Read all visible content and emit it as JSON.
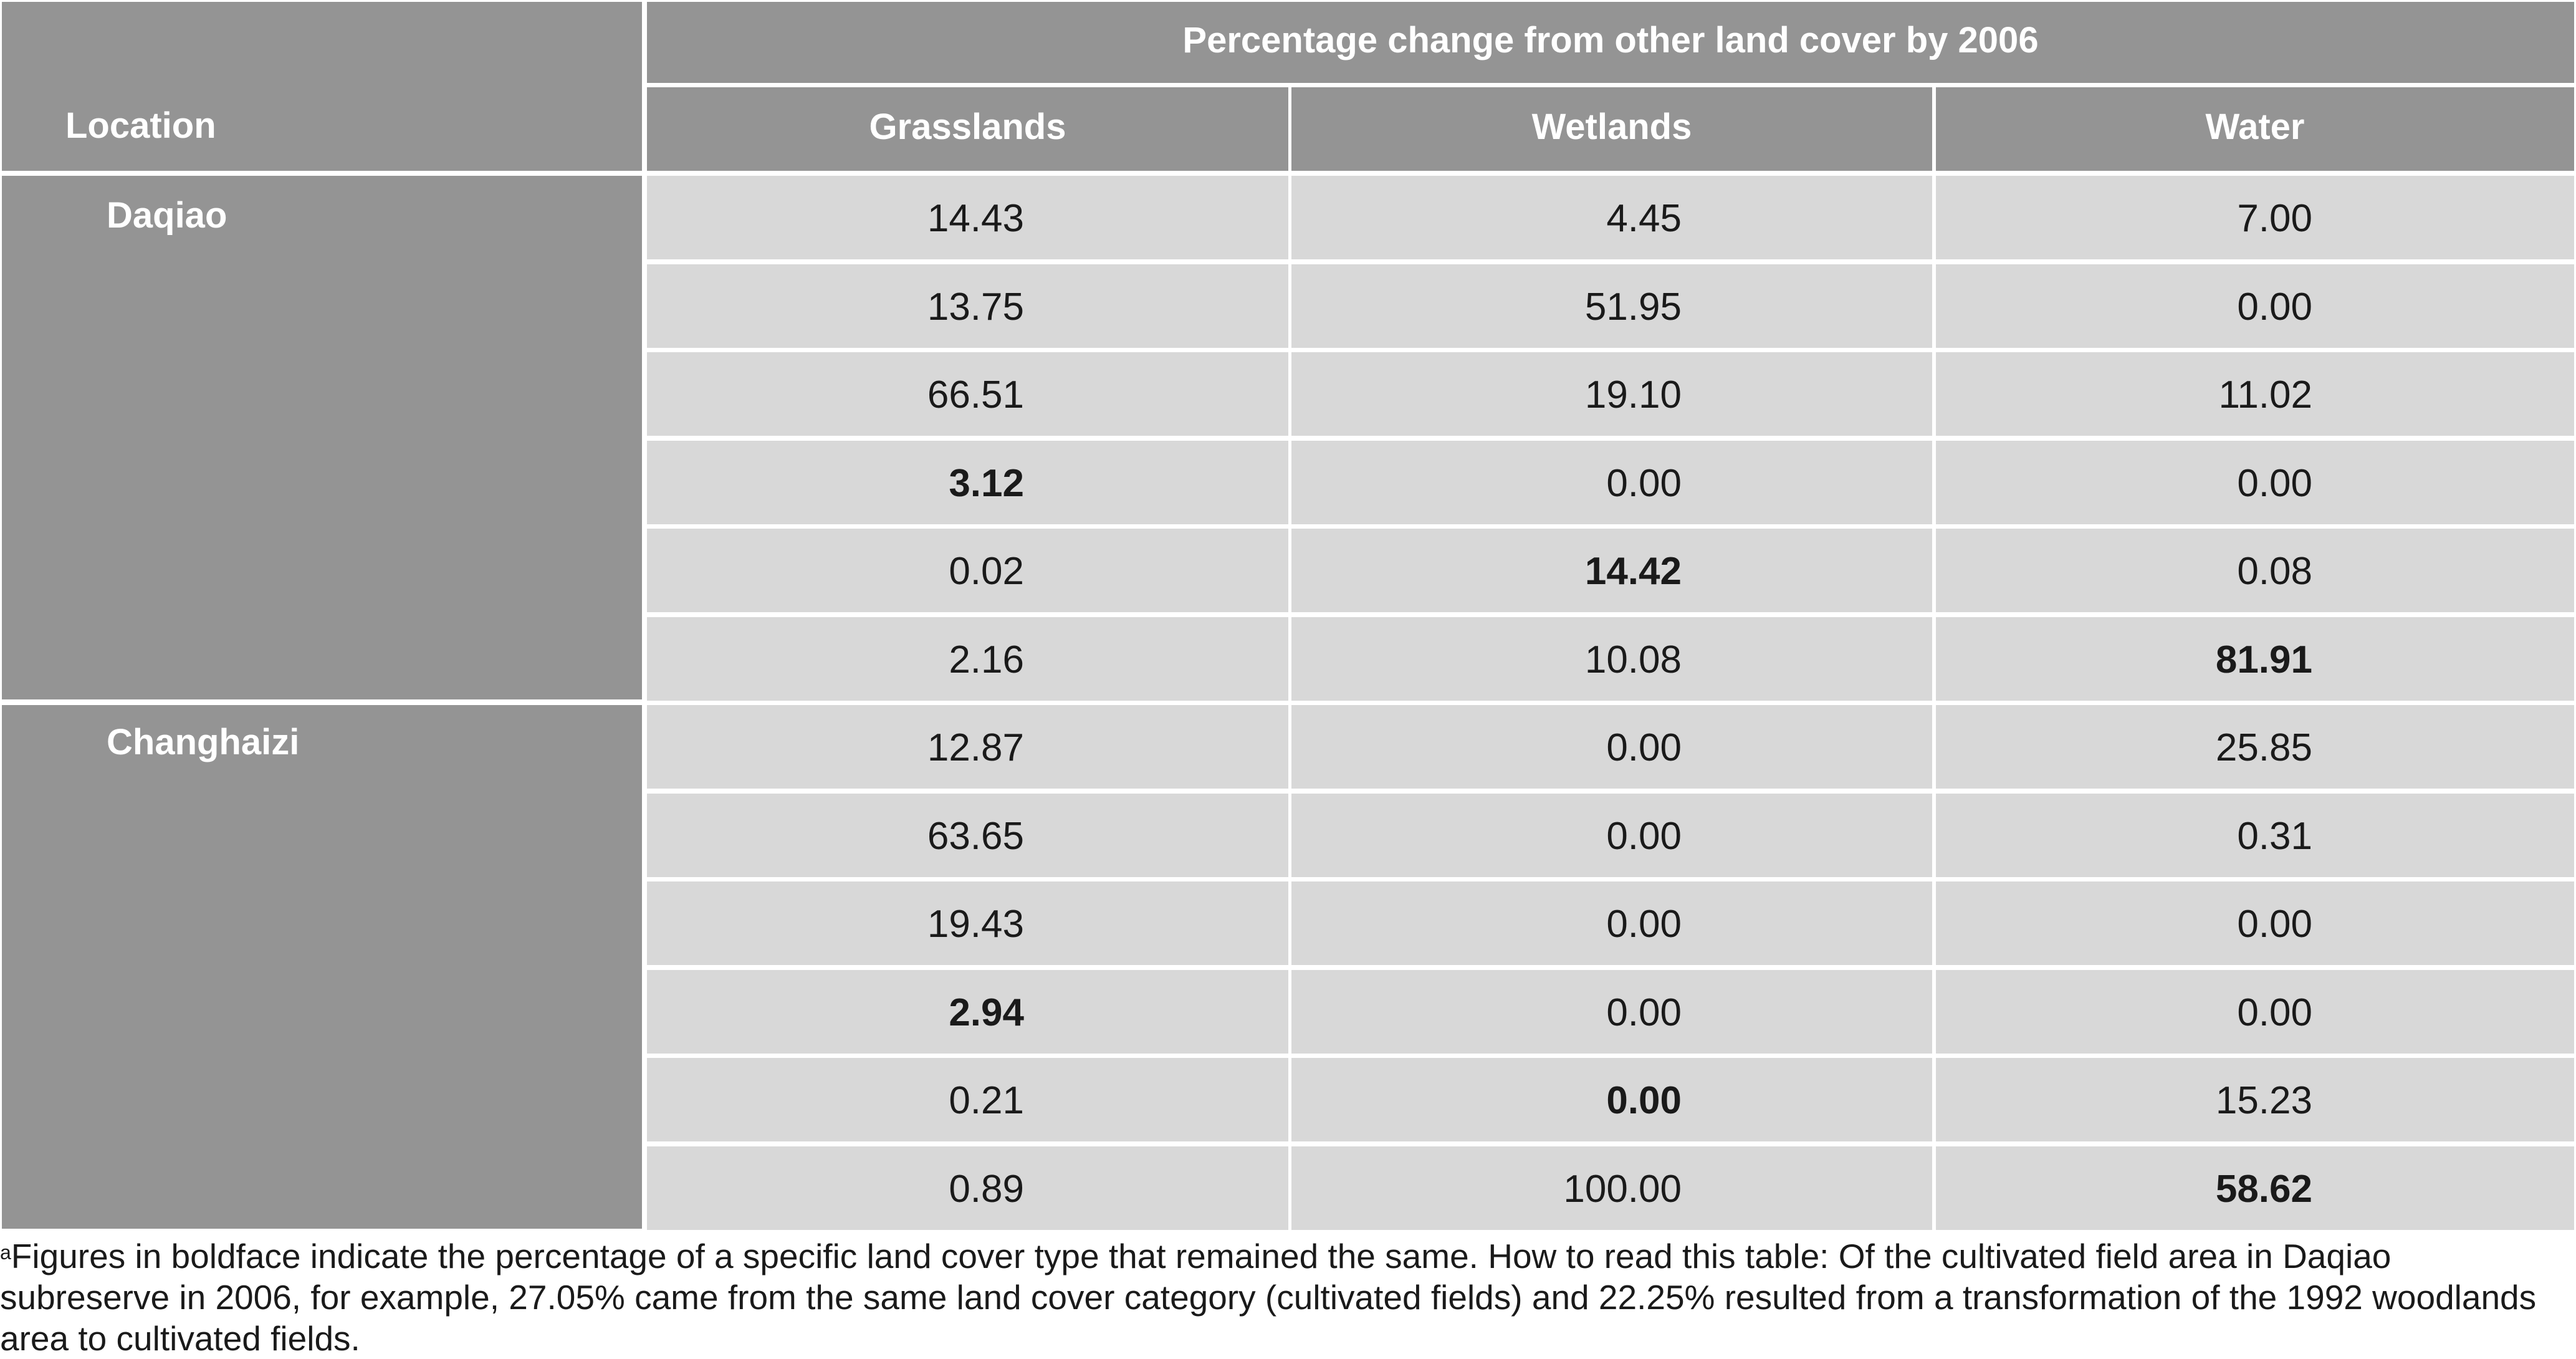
{
  "table": {
    "span_header": "Percentage change from other land cover by 2006",
    "location_header": "Location",
    "columns": [
      "Grasslands",
      "Wetlands",
      "Water"
    ],
    "groups": [
      {
        "location": "Daqiao",
        "rows": [
          {
            "grasslands": "14.43",
            "wetlands": "4.45",
            "water": "7.00",
            "bold": []
          },
          {
            "grasslands": "13.75",
            "wetlands": "51.95",
            "water": "0.00",
            "bold": []
          },
          {
            "grasslands": "66.51",
            "wetlands": "19.10",
            "water": "11.02",
            "bold": []
          },
          {
            "grasslands": "3.12",
            "wetlands": "0.00",
            "water": "0.00",
            "bold": [
              "grasslands"
            ]
          },
          {
            "grasslands": "0.02",
            "wetlands": "14.42",
            "water": "0.08",
            "bold": [
              "wetlands"
            ]
          },
          {
            "grasslands": "2.16",
            "wetlands": "10.08",
            "water": "81.91",
            "bold": [
              "water"
            ]
          }
        ]
      },
      {
        "location": "Changhaizi",
        "rows": [
          {
            "grasslands": "12.87",
            "wetlands": "0.00",
            "water": "25.85",
            "bold": []
          },
          {
            "grasslands": "63.65",
            "wetlands": "0.00",
            "water": "0.31",
            "bold": []
          },
          {
            "grasslands": "19.43",
            "wetlands": "0.00",
            "water": "0.00",
            "bold": []
          },
          {
            "grasslands": "2.94",
            "wetlands": "0.00",
            "water": "0.00",
            "bold": [
              "grasslands"
            ]
          },
          {
            "grasslands": "0.21",
            "wetlands": "0.00",
            "water": "15.23",
            "bold": [
              "wetlands"
            ]
          },
          {
            "grasslands": "0.89",
            "wetlands": "100.00",
            "water": "58.62",
            "bold": [
              "water"
            ]
          }
        ]
      }
    ]
  },
  "footnote": {
    "marker": "a",
    "text": "Figures in boldface indicate the percentage of a specific land cover type that remained the same. How to read this table: Of the cultivated field area in Daqiao subreserve in 2006, for example, 27.05% came from the same land cover category (cultivated fields) and 22.25% resulted from a transformation of the 1992 woodlands area to cultivated fields."
  }
}
